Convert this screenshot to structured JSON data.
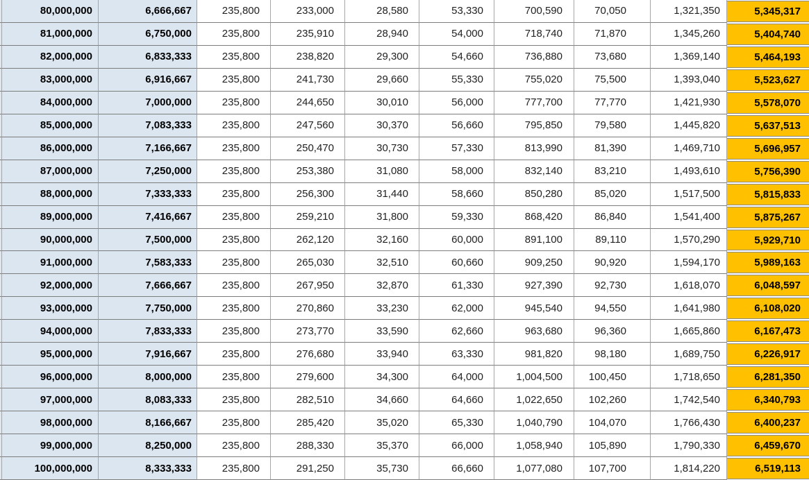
{
  "colors": {
    "emphasis_blue": "#dce6f1",
    "total_orange": "#ffc000",
    "grid_horizontal": "#7c7c7c",
    "grid_vertical": "#a6a6a6"
  },
  "table": {
    "rows": [
      [
        "80,000,000",
        "6,666,667",
        "235,800",
        "233,000",
        "28,580",
        "53,330",
        "700,590",
        "70,050",
        "1,321,350",
        "5,345,317"
      ],
      [
        "81,000,000",
        "6,750,000",
        "235,800",
        "235,910",
        "28,940",
        "54,000",
        "718,740",
        "71,870",
        "1,345,260",
        "5,404,740"
      ],
      [
        "82,000,000",
        "6,833,333",
        "235,800",
        "238,820",
        "29,300",
        "54,660",
        "736,880",
        "73,680",
        "1,369,140",
        "5,464,193"
      ],
      [
        "83,000,000",
        "6,916,667",
        "235,800",
        "241,730",
        "29,660",
        "55,330",
        "755,020",
        "75,500",
        "1,393,040",
        "5,523,627"
      ],
      [
        "84,000,000",
        "7,000,000",
        "235,800",
        "244,650",
        "30,010",
        "56,000",
        "777,700",
        "77,770",
        "1,421,930",
        "5,578,070"
      ],
      [
        "85,000,000",
        "7,083,333",
        "235,800",
        "247,560",
        "30,370",
        "56,660",
        "795,850",
        "79,580",
        "1,445,820",
        "5,637,513"
      ],
      [
        "86,000,000",
        "7,166,667",
        "235,800",
        "250,470",
        "30,730",
        "57,330",
        "813,990",
        "81,390",
        "1,469,710",
        "5,696,957"
      ],
      [
        "87,000,000",
        "7,250,000",
        "235,800",
        "253,380",
        "31,080",
        "58,000",
        "832,140",
        "83,210",
        "1,493,610",
        "5,756,390"
      ],
      [
        "88,000,000",
        "7,333,333",
        "235,800",
        "256,300",
        "31,440",
        "58,660",
        "850,280",
        "85,020",
        "1,517,500",
        "5,815,833"
      ],
      [
        "89,000,000",
        "7,416,667",
        "235,800",
        "259,210",
        "31,800",
        "59,330",
        "868,420",
        "86,840",
        "1,541,400",
        "5,875,267"
      ],
      [
        "90,000,000",
        "7,500,000",
        "235,800",
        "262,120",
        "32,160",
        "60,000",
        "891,100",
        "89,110",
        "1,570,290",
        "5,929,710"
      ],
      [
        "91,000,000",
        "7,583,333",
        "235,800",
        "265,030",
        "32,510",
        "60,660",
        "909,250",
        "90,920",
        "1,594,170",
        "5,989,163"
      ],
      [
        "92,000,000",
        "7,666,667",
        "235,800",
        "267,950",
        "32,870",
        "61,330",
        "927,390",
        "92,730",
        "1,618,070",
        "6,048,597"
      ],
      [
        "93,000,000",
        "7,750,000",
        "235,800",
        "270,860",
        "33,230",
        "62,000",
        "945,540",
        "94,550",
        "1,641,980",
        "6,108,020"
      ],
      [
        "94,000,000",
        "7,833,333",
        "235,800",
        "273,770",
        "33,590",
        "62,660",
        "963,680",
        "96,360",
        "1,665,860",
        "6,167,473"
      ],
      [
        "95,000,000",
        "7,916,667",
        "235,800",
        "276,680",
        "33,940",
        "63,330",
        "981,820",
        "98,180",
        "1,689,750",
        "6,226,917"
      ],
      [
        "96,000,000",
        "8,000,000",
        "235,800",
        "279,600",
        "34,300",
        "64,000",
        "1,004,500",
        "100,450",
        "1,718,650",
        "6,281,350"
      ],
      [
        "97,000,000",
        "8,083,333",
        "235,800",
        "282,510",
        "34,660",
        "64,660",
        "1,022,650",
        "102,260",
        "1,742,540",
        "6,340,793"
      ],
      [
        "98,000,000",
        "8,166,667",
        "235,800",
        "285,420",
        "35,020",
        "65,330",
        "1,040,790",
        "104,070",
        "1,766,430",
        "6,400,237"
      ],
      [
        "99,000,000",
        "8,250,000",
        "235,800",
        "288,330",
        "35,370",
        "66,000",
        "1,058,940",
        "105,890",
        "1,790,330",
        "6,459,670"
      ],
      [
        "100,000,000",
        "8,333,333",
        "235,800",
        "291,250",
        "35,730",
        "66,660",
        "1,077,080",
        "107,700",
        "1,814,220",
        "6,519,113"
      ]
    ]
  }
}
